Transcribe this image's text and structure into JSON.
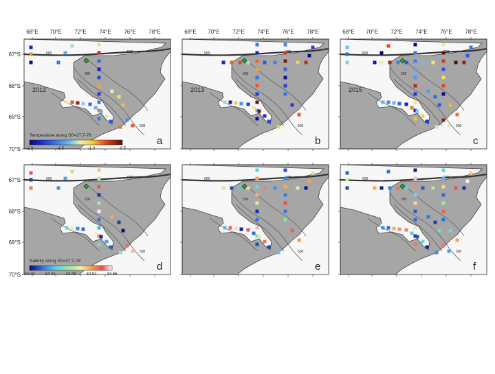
{
  "panels": [
    {
      "id": "a",
      "year": "2012"
    },
    {
      "id": "b",
      "year": "2013"
    },
    {
      "id": "c",
      "year": "2015"
    },
    {
      "id": "d",
      "year": ""
    },
    {
      "id": "e",
      "year": ""
    },
    {
      "id": "f",
      "year": ""
    }
  ],
  "axes": {
    "lon_labels": [
      "68°E",
      "70°E",
      "72°E",
      "74°E",
      "76°E",
      "78°E"
    ],
    "lat_labels": [
      "67°S",
      "68°S",
      "69°S",
      "70°S"
    ]
  },
  "contour_labels": [
    "600",
    "500",
    "200",
    "500"
  ],
  "colorbars": {
    "temperature": {
      "title": "Temperature along S0=27.7-78",
      "ticks": [
        "-2.0",
        "-1.5",
        "-1.0",
        "-0.5"
      ],
      "range": [
        -2.0,
        -0.5
      ]
    },
    "salinity": {
      "title": "Salinity along S0=27.7-78",
      "ticks": [
        "34.40",
        "34.44",
        "34.48",
        "34.52",
        "34.56"
      ],
      "range": [
        34.4,
        34.56
      ]
    }
  },
  "colors": {
    "ocean": "#f7f7f7",
    "land": "#a6a6a6",
    "contour": "#555555",
    "coastline": "#444444",
    "marker": "#1faa2a"
  }
}
